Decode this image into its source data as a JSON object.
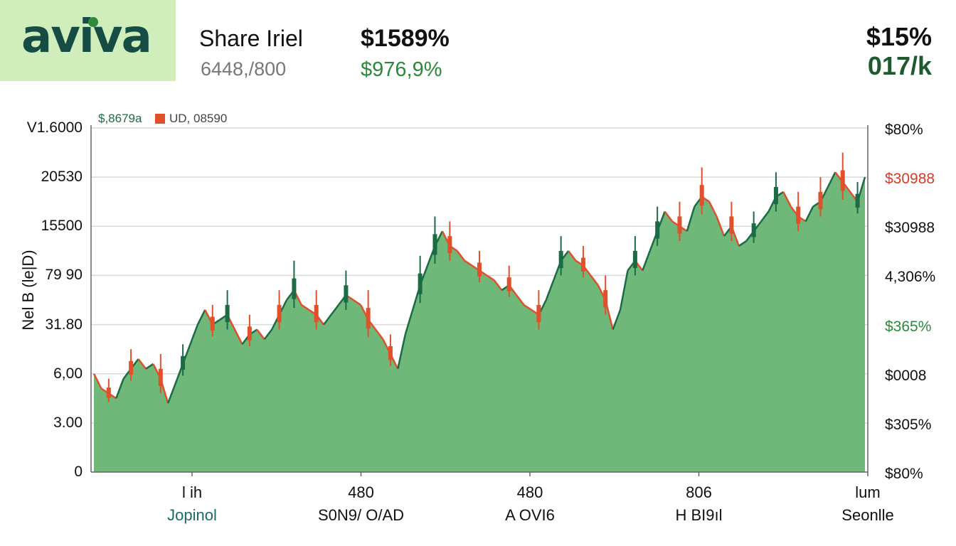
{
  "header": {
    "logo": "aviva",
    "title": "Share Iriel",
    "subtitle": "6448,/800",
    "price": "$1589%",
    "change": "$976,9%",
    "right_top": "$15%",
    "right_bottom": "017/k"
  },
  "colors": {
    "up": "#1b6b45",
    "down": "#e0502a",
    "area": "#6fb879",
    "grid": "#d9d9d9"
  },
  "chart_data": {
    "type": "area",
    "title": "",
    "ylabel": "Nel B (le|D)",
    "legend": [
      {
        "label": "$,8679a",
        "color": "#1b6b45"
      },
      {
        "label": "UD, 08590",
        "color": "#e0502a"
      }
    ],
    "y_ticks_left": [
      "V1.6000",
      "20530",
      "15500",
      "79 90",
      "31.80",
      "6,00",
      "3.00",
      "0"
    ],
    "y_ticks_right": [
      {
        "label": "$80%",
        "color": "#111111"
      },
      {
        "label": "$30988",
        "color": "#d23c28"
      },
      {
        "label": "$30988",
        "color": "#111111"
      },
      {
        "label": "4,306%",
        "color": "#111111"
      },
      {
        "label": "$365%",
        "color": "#2a8a3a"
      },
      {
        "label": "$0008",
        "color": "#111111"
      },
      {
        "label": "$305%",
        "color": "#111111"
      },
      {
        "label": "$80%",
        "color": "#111111"
      }
    ],
    "x_ticks": [
      {
        "label": "l ih",
        "sub": "Jopinol"
      },
      {
        "label": "480",
        "sub": "S0N9/ O/AD"
      },
      {
        "label": "480",
        "sub": "A OVI6"
      },
      {
        "label": "806",
        "sub": "H BI9ıl"
      },
      {
        "label": "lum",
        "sub": "Seonlle"
      }
    ],
    "grid": true,
    "ylim": [
      0,
      7
    ],
    "values": [
      2.0,
      1.7,
      1.6,
      1.5,
      1.9,
      2.1,
      2.3,
      2.1,
      2.2,
      1.9,
      1.4,
      1.8,
      2.2,
      2.6,
      3.0,
      3.3,
      3.0,
      3.1,
      3.2,
      2.9,
      2.6,
      2.8,
      2.9,
      2.7,
      2.9,
      3.2,
      3.5,
      3.7,
      3.4,
      3.3,
      3.2,
      3.0,
      3.2,
      3.4,
      3.6,
      3.5,
      3.4,
      3.1,
      2.9,
      2.7,
      2.4,
      2.1,
      2.8,
      3.3,
      3.8,
      4.2,
      4.6,
      4.9,
      4.6,
      4.5,
      4.3,
      4.2,
      4.1,
      4.0,
      3.9,
      3.7,
      3.8,
      3.6,
      3.4,
      3.3,
      3.2,
      3.5,
      3.9,
      4.3,
      4.5,
      4.3,
      4.2,
      4.0,
      3.8,
      3.5,
      2.9,
      3.3,
      4.1,
      4.3,
      4.1,
      4.5,
      4.9,
      5.3,
      5.1,
      5.0,
      4.9,
      5.4,
      5.6,
      5.5,
      5.2,
      4.8,
      5.0,
      4.6,
      4.7,
      4.9,
      5.1,
      5.3,
      5.6,
      5.7,
      5.4,
      5.2,
      5.1,
      5.4,
      5.5,
      5.8,
      6.1,
      5.9,
      5.7,
      5.5,
      6.0
    ],
    "candles": [
      {
        "x": 2,
        "h": 0.3,
        "dir": "down"
      },
      {
        "x": 5,
        "h": 0.4,
        "dir": "down"
      },
      {
        "x": 9,
        "h": 0.5,
        "dir": "down"
      },
      {
        "x": 12,
        "h": 0.4,
        "dir": "up"
      },
      {
        "x": 16,
        "h": 0.4,
        "dir": "down"
      },
      {
        "x": 18,
        "h": 0.5,
        "dir": "up"
      },
      {
        "x": 21,
        "h": 0.4,
        "dir": "down"
      },
      {
        "x": 25,
        "h": 0.5,
        "dir": "down"
      },
      {
        "x": 27,
        "h": 0.6,
        "dir": "up"
      },
      {
        "x": 30,
        "h": 0.5,
        "dir": "down"
      },
      {
        "x": 34,
        "h": 0.5,
        "dir": "up"
      },
      {
        "x": 37,
        "h": 0.6,
        "dir": "down"
      },
      {
        "x": 40,
        "h": 0.4,
        "dir": "down"
      },
      {
        "x": 44,
        "h": 0.6,
        "dir": "up"
      },
      {
        "x": 46,
        "h": 0.6,
        "dir": "up"
      },
      {
        "x": 48,
        "h": 0.5,
        "dir": "down"
      },
      {
        "x": 52,
        "h": 0.4,
        "dir": "down"
      },
      {
        "x": 56,
        "h": 0.4,
        "dir": "down"
      },
      {
        "x": 60,
        "h": 0.5,
        "dir": "down"
      },
      {
        "x": 63,
        "h": 0.5,
        "dir": "up"
      },
      {
        "x": 66,
        "h": 0.4,
        "dir": "down"
      },
      {
        "x": 69,
        "h": 0.5,
        "dir": "down"
      },
      {
        "x": 73,
        "h": 0.5,
        "dir": "up"
      },
      {
        "x": 76,
        "h": 0.5,
        "dir": "up"
      },
      {
        "x": 79,
        "h": 0.5,
        "dir": "down"
      },
      {
        "x": 82,
        "h": 0.6,
        "dir": "down"
      },
      {
        "x": 86,
        "h": 0.5,
        "dir": "down"
      },
      {
        "x": 89,
        "h": 0.4,
        "dir": "up"
      },
      {
        "x": 92,
        "h": 0.5,
        "dir": "up"
      },
      {
        "x": 95,
        "h": 0.5,
        "dir": "down"
      },
      {
        "x": 98,
        "h": 0.5,
        "dir": "down"
      },
      {
        "x": 101,
        "h": 0.6,
        "dir": "down"
      },
      {
        "x": 103,
        "h": 0.4,
        "dir": "up"
      }
    ]
  }
}
